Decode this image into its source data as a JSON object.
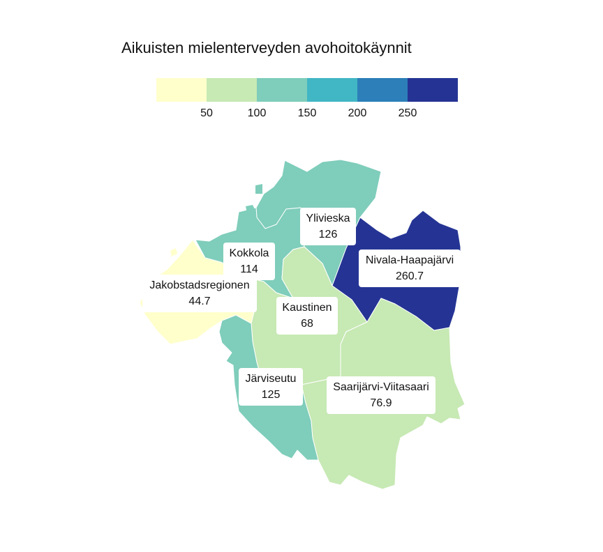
{
  "title": "Aikuisten mielenterveyden avohoitokäynnit",
  "legend": {
    "colors": [
      "#ffffcc",
      "#c7e9b4",
      "#7fcdbb",
      "#41b6c4",
      "#2c7fb8",
      "#253494"
    ],
    "ticks": [
      "50",
      "100",
      "150",
      "200",
      "250"
    ]
  },
  "regions": [
    {
      "name": "Ylivieska",
      "value": "126",
      "color": "#7fcdbb"
    },
    {
      "name": "Nivala-Haapajärvi",
      "value": "260.7",
      "color": "#253494"
    },
    {
      "name": "Kokkola",
      "value": "114",
      "color": "#7fcdbb"
    },
    {
      "name": "Jakobstadsregionen",
      "value": "44.7",
      "color": "#ffffcc"
    },
    {
      "name": "Kaustinen",
      "value": "68",
      "color": "#c7e9b4"
    },
    {
      "name": "Järviseutu",
      "value": "125",
      "color": "#7fcdbb"
    },
    {
      "name": "Saarijärvi-Viitasaari",
      "value": "76.9",
      "color": "#c7e9b4"
    }
  ]
}
